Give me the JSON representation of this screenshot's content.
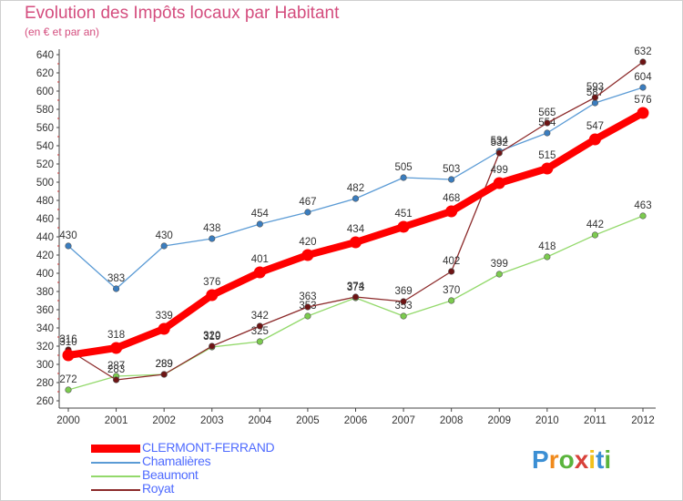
{
  "header": {
    "title": "Evolution des Impôts locaux par Habitant",
    "subtitle": "(en € et par an)"
  },
  "chart_data": {
    "type": "line",
    "title": "Evolution des Impôts locaux par Habitant",
    "subtitle": "(en € et par an)",
    "xlabel": "",
    "ylabel": "",
    "categories": [
      "2000",
      "2001",
      "2002",
      "2003",
      "2004",
      "2005",
      "2006",
      "2007",
      "2008",
      "2009",
      "2010",
      "2011",
      "2012"
    ],
    "ylim": [
      260,
      640
    ],
    "yticks": [
      260,
      280,
      300,
      320,
      340,
      360,
      380,
      400,
      420,
      440,
      460,
      480,
      500,
      520,
      540,
      560,
      580,
      600,
      620,
      640
    ],
    "grid": false,
    "legend_position": "bottom-left",
    "series": [
      {
        "name": "Chamalières",
        "color": "#5b9bd5",
        "marker": "#3a7dbf",
        "values": [
          430,
          383,
          430,
          438,
          454,
          467,
          482,
          505,
          503,
          534,
          554,
          587,
          604
        ]
      },
      {
        "name": "Beaumont",
        "color": "#93d96b",
        "marker": "#7ccb4f",
        "values": [
          272,
          287,
          289,
          319,
          325,
          353,
          373,
          353,
          370,
          399,
          418,
          442,
          463
        ]
      },
      {
        "name": "Royat",
        "color": "#8c2a2a",
        "marker": "#6e1414",
        "values": [
          316,
          283,
          289,
          320,
          342,
          363,
          374,
          369,
          402,
          532,
          565,
          593,
          632
        ]
      },
      {
        "name": "CLERMONT-FERRAND",
        "color": "#ff0000",
        "marker": "#ff0000",
        "values": [
          310,
          318,
          339,
          376,
          401,
          420,
          434,
          451,
          468,
          499,
          515,
          547,
          576
        ]
      }
    ]
  },
  "legend": [
    {
      "label": "CLERMONT-FERRAND",
      "color": "#ff0000",
      "label_color": "#4f6bff"
    },
    {
      "label": "Chamalières",
      "color": "#5b9bd5",
      "label_color": "#4f6bff"
    },
    {
      "label": "Beaumont",
      "color": "#93d96b",
      "label_color": "#4f6bff"
    },
    {
      "label": "Royat",
      "color": "#8c2a2a",
      "label_color": "#4f6bff"
    }
  ],
  "brand": {
    "letters": [
      "P",
      "r",
      "o",
      "x",
      "i",
      "t",
      "i"
    ],
    "colors": [
      "#3b8fd4",
      "#f08a1c",
      "#5ab43c",
      "#d8413a",
      "#f2c01c",
      "#3b8fd4",
      "#5ab43c"
    ]
  }
}
